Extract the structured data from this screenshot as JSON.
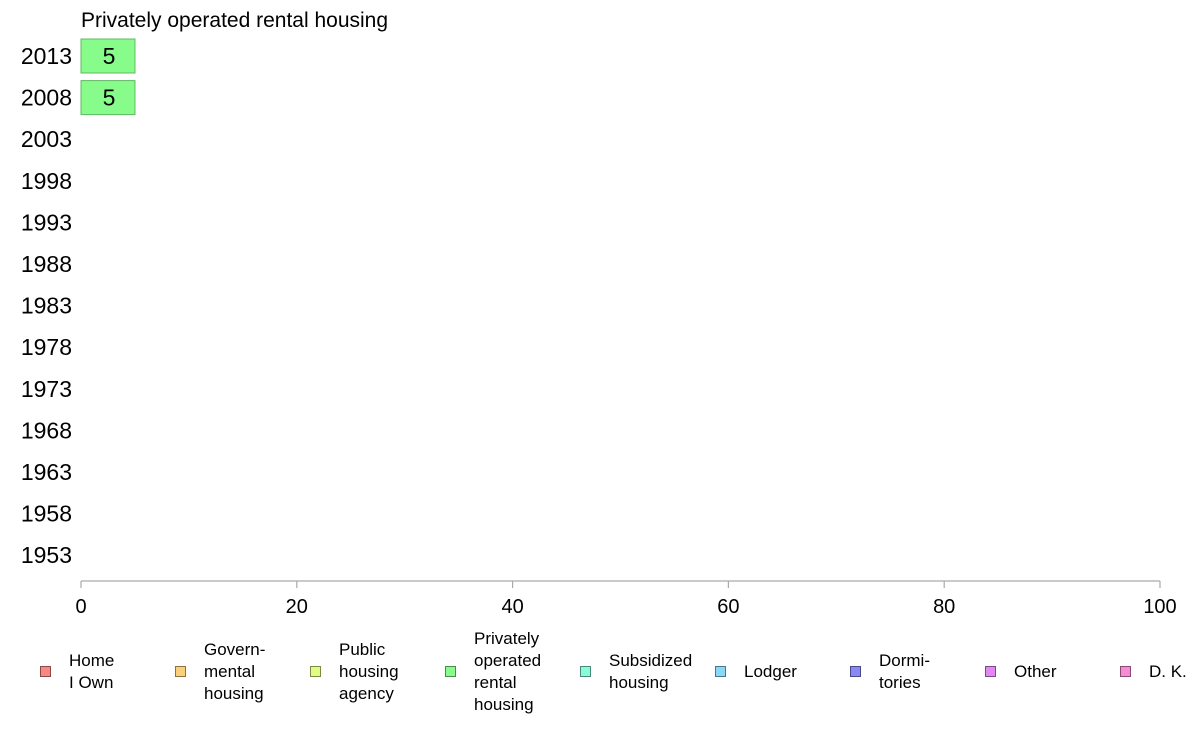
{
  "chart_data": {
    "type": "bar",
    "orientation": "horizontal",
    "title": "Privately operated rental housing",
    "categories": [
      "2013",
      "2008",
      "2003",
      "1998",
      "1993",
      "1988",
      "1983",
      "1978",
      "1973",
      "1968",
      "1963",
      "1958",
      "1953"
    ],
    "values": [
      5,
      5,
      null,
      null,
      null,
      null,
      null,
      null,
      null,
      null,
      null,
      null,
      null
    ],
    "data_labels": [
      "5",
      "5",
      "",
      "",
      "",
      "",
      "",
      "",
      "",
      "",
      "",
      "",
      ""
    ],
    "bar_color": "#88fc8a",
    "bar_border_color": "#5fb862",
    "xlim": [
      0,
      100
    ],
    "x_ticks": [
      0,
      20,
      40,
      60,
      80,
      100
    ],
    "x_tick_labels": [
      "0",
      "20",
      "40",
      "60",
      "80",
      "100"
    ],
    "grid": false,
    "legend_placement": "bottom",
    "legend": [
      {
        "label": "Home\nI Own",
        "color": "#f98883"
      },
      {
        "label": "Govern-\nmental\n housing",
        "color": "#fbd07a"
      },
      {
        "label": "Public\nhousing\nagency",
        "color": "#e2fb82"
      },
      {
        "label": "Privately\noperated\nrental\nhousing",
        "color": "#88fc8a"
      },
      {
        "label": "Subsidized\n housing",
        "color": "#88fcd9"
      },
      {
        "label": "Lodger",
        "color": "#88d8f6"
      },
      {
        "label": "Dormi-\ntories",
        "color": "#8889f4"
      },
      {
        "label": "Other",
        "color": "#e089f6"
      },
      {
        "label": "D. K.",
        "color": "#f989d3"
      }
    ]
  }
}
